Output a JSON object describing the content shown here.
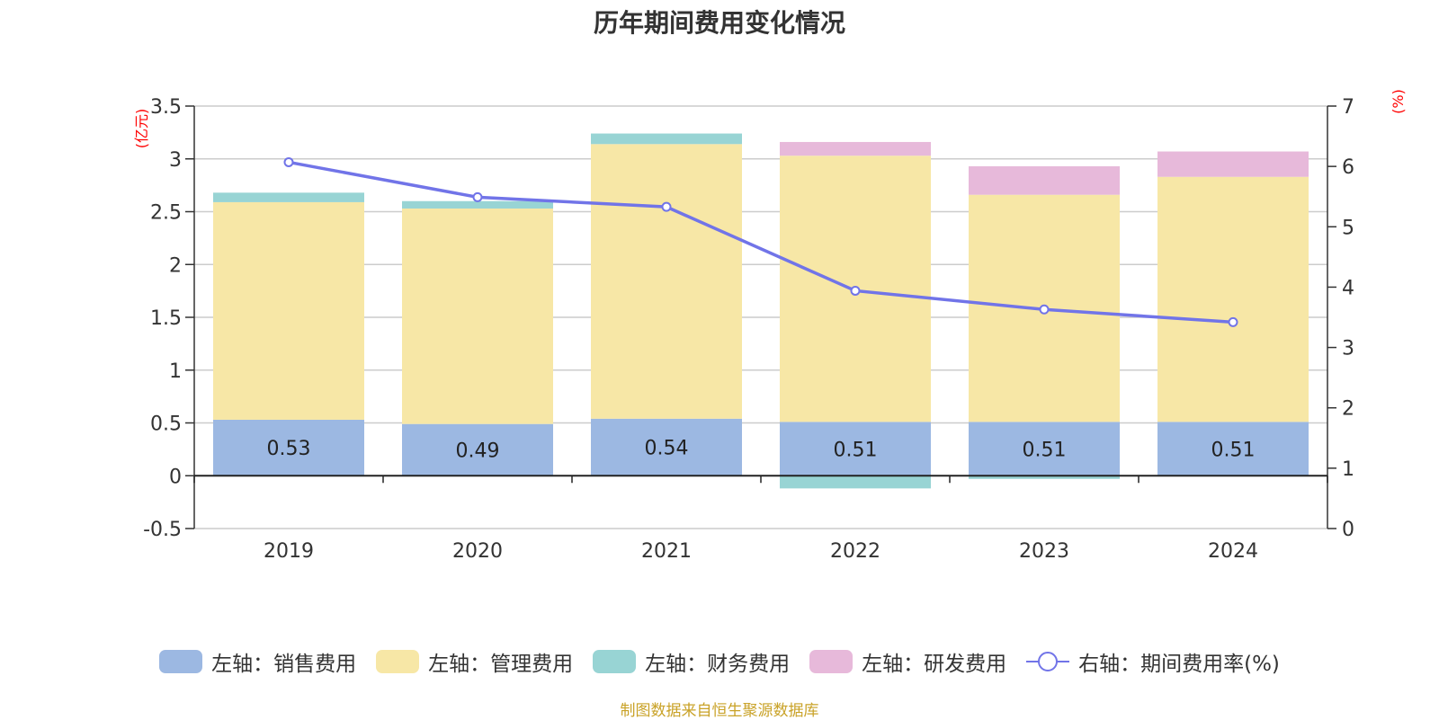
{
  "title": "历年期间费用变化情况",
  "source_note": "制图数据来自恒生聚源数据库",
  "colors": {
    "sales": "#9cb8e2",
    "admin": "#f7e7a6",
    "finance": "#98d4d4",
    "rd": "#e7b9da",
    "rate_line": "#7174e8"
  },
  "legend": [
    {
      "label": "左轴：销售费用",
      "type": "swatch",
      "color": "#9cb8e2"
    },
    {
      "label": "左轴：管理费用",
      "type": "swatch",
      "color": "#f7e7a6"
    },
    {
      "label": "左轴：财务费用",
      "type": "swatch",
      "color": "#98d4d4"
    },
    {
      "label": "左轴：研发费用",
      "type": "swatch",
      "color": "#e7b9da"
    },
    {
      "label": "右轴：期间费用率(%)",
      "type": "line",
      "color": "#7174e8"
    }
  ],
  "chart_data": {
    "type": "bar",
    "stacked": true,
    "categories": [
      "2019",
      "2020",
      "2021",
      "2022",
      "2023",
      "2024"
    ],
    "left_axis": {
      "unit_label": "(亿元)",
      "ylim": [
        -0.5,
        3.5
      ],
      "ticks": [
        -0.5,
        0,
        0.5,
        1,
        1.5,
        2,
        2.5,
        3,
        3.5
      ],
      "tick_labels": [
        "-0.5",
        "0",
        "0.5",
        "1",
        "1.5",
        "2",
        "2.5",
        "3",
        "3.5"
      ]
    },
    "right_axis": {
      "unit_label": "(%)",
      "ylim": [
        0,
        7
      ],
      "ticks": [
        0,
        1,
        2,
        3,
        4,
        5,
        6,
        7
      ],
      "tick_labels": [
        "0",
        "1",
        "2",
        "3",
        "4",
        "5",
        "6",
        "7"
      ]
    },
    "series": [
      {
        "name": "左轴：销售费用",
        "axis": "left",
        "values": [
          0.53,
          0.49,
          0.54,
          0.51,
          0.51,
          0.51
        ],
        "data_labels": [
          "0.53",
          "0.49",
          "0.54",
          "0.51",
          "0.51",
          "0.51"
        ]
      },
      {
        "name": "左轴：管理费用",
        "axis": "left",
        "values": [
          2.06,
          2.04,
          2.6,
          2.52,
          2.15,
          2.32
        ]
      },
      {
        "name": "左轴：财务费用",
        "axis": "left",
        "values": [
          0.09,
          0.07,
          0.1,
          -0.12,
          -0.03,
          0.0
        ]
      },
      {
        "name": "左轴：研发费用",
        "axis": "left",
        "values": [
          0.0,
          0.0,
          0.0,
          0.13,
          0.27,
          0.24
        ]
      },
      {
        "name": "右轴：期间费用率(%)",
        "type": "line",
        "axis": "right",
        "values": [
          6.07,
          5.49,
          5.33,
          3.94,
          3.63,
          3.42
        ]
      }
    ],
    "grid": true,
    "legend_position": "bottom"
  }
}
